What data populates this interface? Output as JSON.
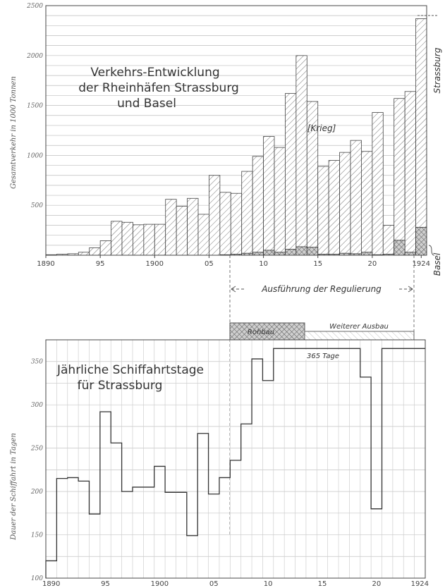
{
  "chart_data": [
    {
      "type": "bar",
      "title_lines": [
        "Verkehrs-Entwicklung",
        "der Rheinhäfen Strassburg",
        "und Basel"
      ],
      "ylabel": "Gesamtverkehr in 1000 Tonnen",
      "ylim": [
        0,
        2500
      ],
      "yticks": [
        "500",
        "1000",
        "1500",
        "2000",
        "2500"
      ],
      "xtick_labels": [
        "1890",
        "95",
        "1900",
        "05",
        "10",
        "15",
        "20",
        "1924"
      ],
      "grid": true,
      "annotation": "[Krieg]",
      "series": [
        {
          "name": "Strassburg",
          "x": [
            1890,
            1891,
            1892,
            1893,
            1894,
            1895,
            1896,
            1897,
            1898,
            1899,
            1900,
            1901,
            1902,
            1903,
            1904,
            1905,
            1906,
            1907,
            1908,
            1909,
            1910,
            1911,
            1912,
            1913,
            1914,
            1915,
            1916,
            1917,
            1918,
            1919,
            1920,
            1921,
            1922,
            1923,
            1924
          ],
          "values": [
            5,
            10,
            15,
            30,
            75,
            145,
            340,
            330,
            305,
            310,
            310,
            560,
            490,
            570,
            410,
            800,
            630,
            620,
            840,
            990,
            1190,
            1080,
            1620,
            2000,
            1540,
            890,
            950,
            1030,
            1150,
            1040,
            1430,
            300,
            1570,
            1640,
            2370
          ]
        },
        {
          "name": "Basel",
          "x": [
            1906,
            1907,
            1908,
            1909,
            1910,
            1911,
            1912,
            1913,
            1914,
            1915,
            1916,
            1917,
            1918,
            1919,
            1920,
            1921,
            1922,
            1923,
            1924
          ],
          "values": [
            5,
            10,
            20,
            30,
            50,
            30,
            60,
            85,
            80,
            10,
            10,
            20,
            15,
            30,
            5,
            10,
            150,
            30,
            280
          ]
        }
      ]
    },
    {
      "type": "line",
      "title_lines": [
        "Jährliche Schiffahrtstage",
        "für Strassburg"
      ],
      "ylabel": "Dauer der Schiffahrt in Tagen",
      "ylim": [
        100,
        375
      ],
      "yticks": [
        "100",
        "150",
        "200",
        "250",
        "300",
        "350"
      ],
      "xtick_labels": [
        "1890",
        "95",
        "1900",
        "05",
        "10",
        "15",
        "20",
        "1924"
      ],
      "grid": true,
      "annotation": "365 Tage",
      "x": [
        1890,
        1891,
        1892,
        1893,
        1894,
        1895,
        1896,
        1897,
        1898,
        1899,
        1900,
        1901,
        1902,
        1903,
        1904,
        1905,
        1906,
        1907,
        1908,
        1909,
        1910,
        1911,
        1912,
        1913,
        1914,
        1915,
        1916,
        1917,
        1918,
        1919,
        1920,
        1921,
        1922,
        1923,
        1924
      ],
      "values": [
        120,
        215,
        216,
        212,
        174,
        292,
        256,
        200,
        205,
        205,
        229,
        199,
        199,
        149,
        267,
        197,
        216,
        236,
        278,
        353,
        328,
        365,
        365,
        365,
        365,
        365,
        365,
        365,
        365,
        332,
        180,
        365,
        365,
        365,
        365
      ]
    }
  ],
  "regulation": {
    "label": "Ausführung der Regulierung",
    "phase1_label": "Rohbau",
    "phase2_label": "Weiterer Ausbau"
  },
  "side_labels": {
    "strassburg": "Strassburg",
    "basel": "Basel"
  }
}
